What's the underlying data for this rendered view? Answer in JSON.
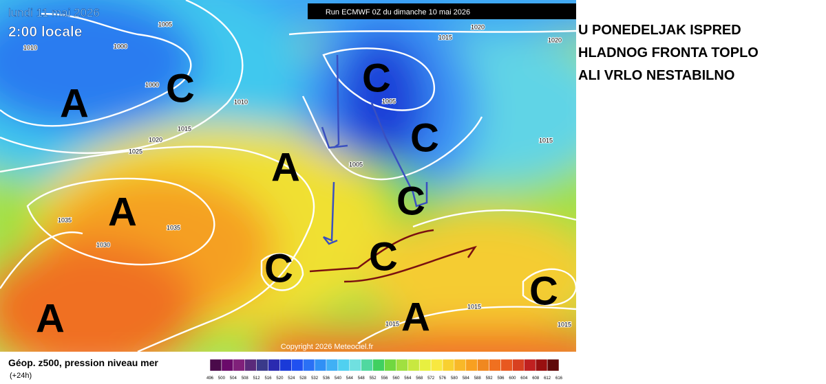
{
  "header": {
    "date": "lundi 11 mai 2026",
    "time": "2:00 locale",
    "run": "Run ECMWF 0Z du dimanche 10 mai 2026"
  },
  "annotation": [
    "U PONEDELJAK ISPRED",
    "HLADNOG FRONTA TOPLO",
    "ALI VRLO NESTABILNO"
  ],
  "map": {
    "centers": [
      "A",
      "C",
      "A",
      "A",
      "A",
      "C",
      "C",
      "C",
      "C",
      "C",
      "A",
      "C"
    ],
    "isobar_labels": [
      1005,
      1010,
      1000,
      1000,
      1010,
      1015,
      1020,
      1025,
      1035,
      1035,
      1030,
      1015,
      1020,
      1020,
      1005,
      1005,
      1015,
      1015,
      1015,
      1015
    ],
    "copyright": "Copyright 2026 Meteociel.fr"
  },
  "legend": {
    "title": "Géop. z500, pression niveau mer",
    "lead": "(+24h)",
    "ticks": [
      496,
      500,
      504,
      508,
      512,
      516,
      520,
      524,
      528,
      532,
      536,
      540,
      544,
      548,
      552,
      556,
      560,
      564,
      568,
      572,
      576,
      580,
      584,
      588,
      592,
      596,
      600,
      604,
      608,
      612,
      616
    ],
    "colors": [
      "#4a0a4a",
      "#6a0a6a",
      "#80207a",
      "#5a2a7a",
      "#3a3a8a",
      "#2a2ab0",
      "#1a3ad8",
      "#2050f0",
      "#2a70f5",
      "#3090f5",
      "#40b0f5",
      "#50d0f0",
      "#70e0e0",
      "#50d8a0",
      "#40d060",
      "#70d840",
      "#a0e040",
      "#c8e840",
      "#e8f040",
      "#f8e840",
      "#f8d030",
      "#f8b828",
      "#f8a020",
      "#f08820",
      "#f07020",
      "#e85820",
      "#d84020",
      "#c02020",
      "#981010",
      "#600808"
    ]
  }
}
